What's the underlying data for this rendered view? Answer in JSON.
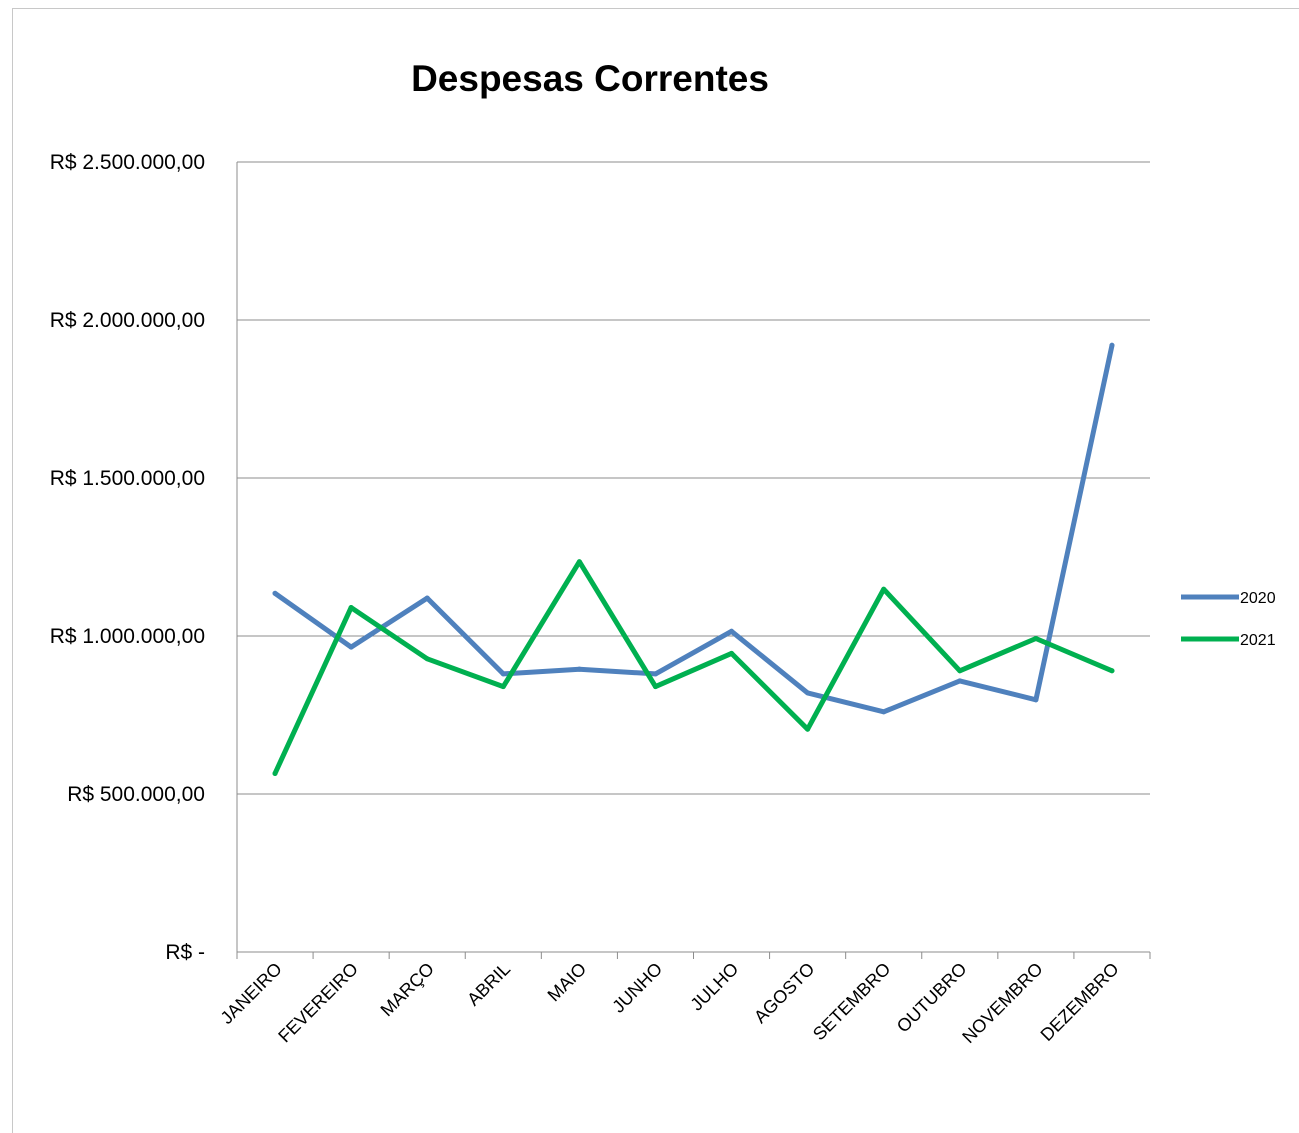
{
  "chart_data": {
    "type": "line",
    "title": "Despesas Correntes",
    "xlabel": "",
    "ylabel": "",
    "categories": [
      "JANEIRO",
      "FEVEREIRO",
      "MARÇO",
      "ABRIL",
      "MAIO",
      "JUNHO",
      "JULHO",
      "AGOSTO",
      "SETEMBRO",
      "OUTUBRO",
      "NOVEMBRO",
      "DEZEMBRO"
    ],
    "series": [
      {
        "name": "2020",
        "color": "#4f81bd",
        "values": [
          1135000,
          965000,
          1120000,
          880000,
          895000,
          880000,
          1015000,
          820000,
          760000,
          858000,
          798000,
          1920000
        ]
      },
      {
        "name": "2021",
        "color": "#00b050",
        "values": [
          565000,
          1090000,
          928000,
          840000,
          1235000,
          840000,
          945000,
          705000,
          1148000,
          890000,
          992000,
          890000
        ]
      }
    ],
    "ylim": [
      0,
      2500000
    ],
    "y_ticks": [
      0,
      500000,
      1000000,
      1500000,
      2000000,
      2500000
    ],
    "y_tick_labels": [
      "R$ -",
      "R$ 500.000,00",
      "R$ 1.000.000,00",
      "R$ 1.500.000,00",
      "R$ 2.000.000,00",
      "R$ 2.500.000,00"
    ],
    "grid": true,
    "legend_position": "right"
  }
}
